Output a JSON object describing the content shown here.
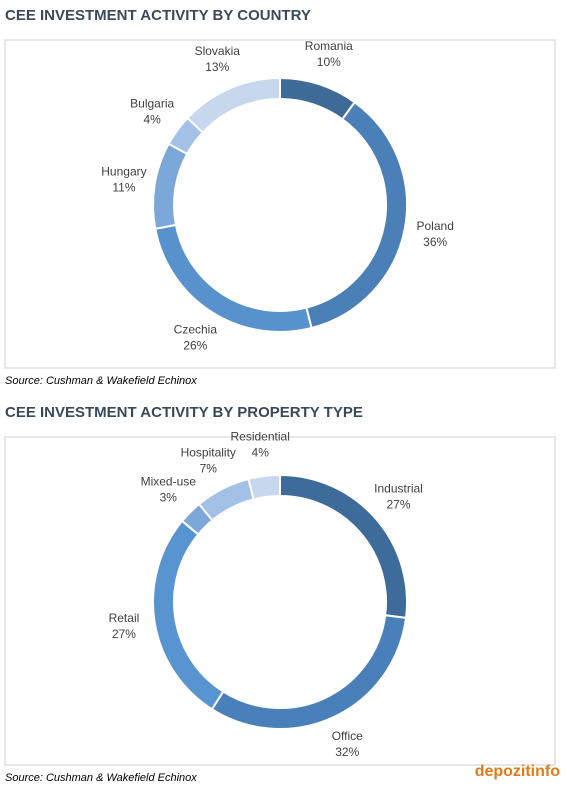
{
  "chart_data": [
    {
      "type": "pie",
      "title": "CEE INVESTMENT ACTIVITY BY COUNTRY",
      "categories": [
        "Romania",
        "Poland",
        "Czechia",
        "Hungary",
        "Bulgaria",
        "Slovakia"
      ],
      "values": [
        10,
        36,
        26,
        11,
        4,
        13
      ],
      "value_labels": [
        "10%",
        "36%",
        "26%",
        "11%",
        "4%",
        "13%"
      ],
      "colors": [
        "#3e6a98",
        "#4a7fb8",
        "#5792cd",
        "#7ba7d9",
        "#a3c1e6",
        "#c6d7ee"
      ],
      "source": "Source: Cushman & Wakefield Echinox"
    },
    {
      "type": "pie",
      "title": "CEE INVESTMENT ACTIVITY BY PROPERTY TYPE",
      "categories": [
        "Industrial",
        "Office",
        "Retail",
        "Mixed-use",
        "Hospitality",
        "Residential"
      ],
      "values": [
        27,
        32,
        27,
        3,
        7,
        4
      ],
      "value_labels": [
        "27%",
        "32%",
        "27%",
        "3%",
        "7%",
        "4%"
      ],
      "colors": [
        "#3d6c9b",
        "#4a80ba",
        "#5894cf",
        "#7ba7d9",
        "#a3c1e6",
        "#c6d7ee"
      ],
      "source": "Source: Cushman & Wakefield Echinox"
    }
  ],
  "watermark": "depozitinfo"
}
